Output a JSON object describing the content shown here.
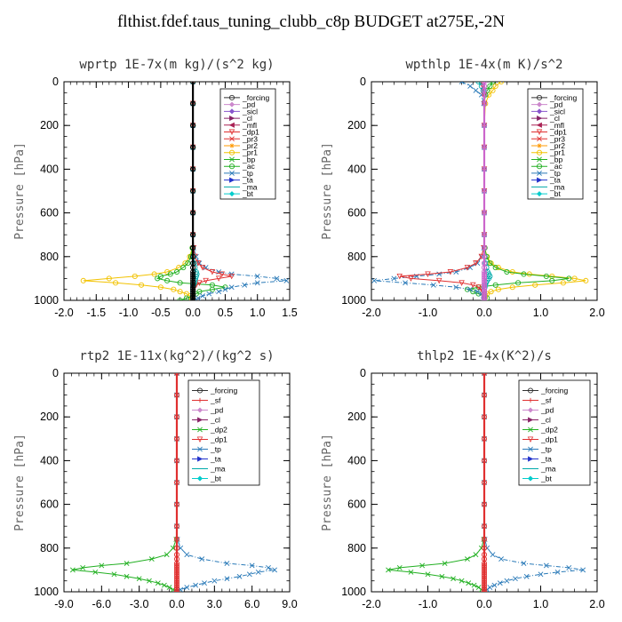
{
  "figure_title": "flthist.fdef.taus_tuning_clubb_c8p  BUDGET at275E,-2N",
  "chart_data": [
    {
      "type": "line",
      "panel": "wprtp",
      "title": "wprtp   1E-7x(m kg)/(s^2 kg)",
      "xlabel": "",
      "ylabel": "Pressure [hPa]",
      "xlim": [
        -2.0,
        1.5
      ],
      "ylim": [
        1000,
        0
      ],
      "xticks": [
        -2.0,
        -1.5,
        -1.0,
        -0.5,
        0.0,
        0.5,
        1.0,
        1.5
      ],
      "yticks": [
        0,
        200,
        400,
        600,
        800,
        1000
      ],
      "pressure": [
        0,
        100,
        200,
        300,
        400,
        500,
        600,
        700,
        760,
        800,
        830,
        850,
        870,
        880,
        890,
        900,
        910,
        920,
        930,
        940,
        950,
        960,
        970,
        980,
        990,
        1000
      ],
      "legend": [
        "_forcing",
        "_pd",
        "_sicl",
        "_cl",
        "_mfl",
        "_dp1",
        "_pr3",
        "_pr2",
        "_pr1",
        "_bp",
        "_ac",
        "_tp",
        "_ta",
        "_ma",
        "_bt"
      ],
      "series": [
        {
          "name": "_pr1",
          "color": "#f2c200",
          "values": [
            0,
            0,
            0,
            0,
            0,
            0,
            0,
            0,
            -0.01,
            -0.05,
            -0.12,
            -0.22,
            -0.4,
            -0.6,
            -0.9,
            -1.3,
            -1.7,
            -1.2,
            -0.8,
            -0.5,
            -0.3,
            -0.2,
            -0.1,
            -0.05,
            -0.02,
            0
          ]
        },
        {
          "name": "_ac",
          "color": "#22b022",
          "values": [
            0,
            0,
            0,
            0,
            0,
            0,
            0,
            0,
            -0.01,
            -0.03,
            -0.08,
            -0.15,
            -0.25,
            -0.35,
            -0.5,
            -0.55,
            -0.4,
            -0.2,
            0.3,
            0.5,
            0.3,
            0.1,
            0.05,
            0.0,
            -0.1,
            -0.2
          ]
        },
        {
          "name": "_tp",
          "color": "#2a7ab8",
          "values": [
            0,
            0,
            0,
            0,
            0,
            0,
            0,
            0,
            0.01,
            0.05,
            0.1,
            0.2,
            0.4,
            0.6,
            1.0,
            1.3,
            1.45,
            1.0,
            0.8,
            0.6,
            0.5,
            0.4,
            0.25,
            0.15,
            0.08,
            0
          ]
        },
        {
          "name": "_dp1",
          "color": "#e03030",
          "values": [
            0,
            0,
            0,
            0,
            0,
            0,
            0,
            0,
            0.01,
            0.03,
            0.08,
            0.15,
            0.3,
            0.45,
            0.6,
            0.4,
            0.2,
            0.1,
            0.05,
            0.02,
            0,
            0,
            0,
            0,
            0,
            0
          ]
        },
        {
          "name": "_ma",
          "color": "#00aaaa",
          "values": [
            0,
            0,
            0,
            0,
            0,
            0,
            0,
            0,
            0,
            0.01,
            0.02,
            0.03,
            0.05,
            0.06,
            0.05,
            0.04,
            0.03,
            0.02,
            0.01,
            0,
            0,
            0,
            0,
            0,
            0,
            0
          ]
        },
        {
          "name": "_forcing",
          "color": "#000000",
          "values": [
            0,
            0,
            0,
            0,
            0,
            0,
            0,
            0,
            0,
            0,
            0,
            0,
            0,
            0,
            0,
            0,
            0,
            0,
            0,
            0,
            0,
            0,
            0,
            0,
            0,
            0
          ]
        }
      ]
    },
    {
      "type": "line",
      "panel": "wpthlp",
      "title": "wpthlp   1E-4x(m K)/s^2",
      "xlabel": "",
      "ylabel": "Pressure [hPa]",
      "xlim": [
        -2.0,
        2.0
      ],
      "ylim": [
        1000,
        0
      ],
      "xticks": [
        -2.0,
        -1.0,
        0.0,
        1.0,
        2.0
      ],
      "yticks": [
        0,
        200,
        400,
        600,
        800,
        1000
      ],
      "pressure": [
        0,
        20,
        40,
        60,
        100,
        200,
        300,
        400,
        500,
        600,
        700,
        760,
        800,
        830,
        850,
        870,
        880,
        890,
        900,
        910,
        920,
        930,
        940,
        950,
        960,
        970,
        980,
        990,
        1000
      ],
      "legend": [
        "_forcing",
        "_pd",
        "_sicl",
        "_cl",
        "_mfl",
        "_dp1",
        "_pr3",
        "_pr2",
        "_pr1",
        "_bp",
        "_ac",
        "_tp",
        "_ta",
        "_ma",
        "_bt"
      ],
      "series": [
        {
          "name": "_pr1",
          "color": "#f2c200",
          "values": [
            0.3,
            0.2,
            0.15,
            0.08,
            0.02,
            0,
            0,
            0,
            0,
            0,
            0,
            0.01,
            0.05,
            0.12,
            0.25,
            0.5,
            0.8,
            1.2,
            1.6,
            1.8,
            1.4,
            0.9,
            0.5,
            0.25,
            0.12,
            0.05,
            0.02,
            0.01,
            0
          ]
        },
        {
          "name": "_ac",
          "color": "#22b022",
          "values": [
            0.15,
            0.1,
            0.05,
            0.02,
            0,
            0,
            0,
            0,
            0,
            0,
            0,
            0.01,
            0.04,
            0.1,
            0.2,
            0.4,
            0.7,
            1.1,
            1.5,
            1.2,
            0.6,
            0.2,
            -0.1,
            -0.3,
            -0.2,
            -0.1,
            0,
            0.05,
            0
          ]
        },
        {
          "name": "_tp",
          "color": "#2a7ab8",
          "values": [
            -0.4,
            -0.25,
            -0.15,
            -0.05,
            -0.01,
            0,
            0,
            0,
            0,
            0,
            0,
            -0.01,
            -0.05,
            -0.12,
            -0.25,
            -0.5,
            -0.8,
            -1.2,
            -1.6,
            -1.95,
            -1.4,
            -0.9,
            -0.5,
            -0.25,
            -0.12,
            -0.05,
            -0.02,
            -0.01,
            0
          ]
        },
        {
          "name": "_dp1",
          "color": "#e03030",
          "values": [
            -0.05,
            -0.03,
            -0.02,
            -0.01,
            0,
            0,
            0,
            0,
            0,
            0,
            0,
            -0.01,
            -0.05,
            -0.15,
            -0.3,
            -0.6,
            -1.0,
            -1.5,
            -1.3,
            -0.8,
            -0.4,
            -0.2,
            -0.1,
            -0.05,
            -0.02,
            0,
            0,
            0,
            0
          ]
        },
        {
          "name": "_ma",
          "color": "#00aaaa",
          "values": [
            -0.1,
            -0.05,
            -0.02,
            0,
            0,
            0,
            0,
            0,
            0,
            0,
            0,
            0,
            0.01,
            0.02,
            0.04,
            0.06,
            0.08,
            0.1,
            0.08,
            0.05,
            0.03,
            0.02,
            0.01,
            0,
            0,
            0,
            0,
            0,
            0
          ]
        },
        {
          "name": "_forcing",
          "color": "#cc66cc",
          "values": [
            0,
            0,
            0,
            0,
            0,
            0,
            0,
            0,
            0,
            0,
            0,
            0,
            0,
            0,
            0,
            0,
            0,
            0,
            0,
            0,
            0,
            0,
            0,
            0,
            0,
            0,
            0,
            0,
            0
          ]
        }
      ]
    },
    {
      "type": "line",
      "panel": "rtp2",
      "title": "rtp2   1E-11x(kg^2)/(kg^2 s)",
      "xlabel": "",
      "ylabel": "Pressure [hPa]",
      "xlim": [
        -9.0,
        9.0
      ],
      "ylim": [
        1000,
        0
      ],
      "xticks": [
        -9.0,
        -6.0,
        -3.0,
        0.0,
        3.0,
        6.0,
        9.0
      ],
      "yticks": [
        0,
        200,
        400,
        600,
        800,
        1000
      ],
      "pressure": [
        0,
        100,
        200,
        300,
        400,
        500,
        600,
        700,
        760,
        800,
        830,
        850,
        870,
        880,
        890,
        900,
        910,
        920,
        930,
        940,
        950,
        960,
        970,
        980,
        990,
        1000
      ],
      "legend": [
        "_forcing",
        "_sf",
        "_pd",
        "_cl",
        "_dp2",
        "_dp1",
        "_tp",
        "_ta",
        "_ma",
        "_bt"
      ],
      "series": [
        {
          "name": "_dp2",
          "color": "#22b022",
          "values": [
            0,
            0,
            0,
            0,
            0,
            0,
            0,
            0,
            -0.05,
            -0.3,
            -0.8,
            -2.0,
            -4.0,
            -6.0,
            -7.5,
            -8.3,
            -6.5,
            -5.0,
            -4.0,
            -3.0,
            -2.2,
            -1.5,
            -1.0,
            -0.6,
            -0.3,
            0
          ]
        },
        {
          "name": "_tp",
          "color": "#2a7ab8",
          "values": [
            0,
            0,
            0,
            0,
            0,
            0,
            0,
            0,
            0.05,
            0.3,
            0.8,
            2.0,
            4.0,
            6.0,
            7.3,
            7.8,
            6.5,
            5.8,
            5.0,
            4.0,
            3.0,
            2.2,
            1.5,
            0.8,
            0.3,
            0
          ]
        },
        {
          "name": "_forcing",
          "color": "#e03030",
          "values": [
            0,
            0,
            0,
            0,
            0,
            0,
            0,
            0,
            0,
            0,
            0,
            0,
            0,
            0,
            0,
            0,
            0,
            0,
            0,
            0,
            0,
            0,
            0,
            0,
            0,
            0
          ]
        }
      ]
    },
    {
      "type": "line",
      "panel": "thlp2",
      "title": "thlp2   1E-4x(K^2)/s",
      "xlabel": "",
      "ylabel": "Pressure [hPa]",
      "xlim": [
        -2.0,
        2.0
      ],
      "ylim": [
        1000,
        0
      ],
      "xticks": [
        -2.0,
        -1.0,
        0.0,
        1.0,
        2.0
      ],
      "yticks": [
        0,
        200,
        400,
        600,
        800,
        1000
      ],
      "pressure": [
        0,
        100,
        200,
        300,
        400,
        500,
        600,
        700,
        760,
        800,
        830,
        850,
        870,
        880,
        890,
        900,
        910,
        920,
        930,
        940,
        950,
        960,
        970,
        980,
        990,
        1000
      ],
      "legend": [
        "_forcing",
        "_sf",
        "_pd",
        "_cl",
        "_dp2",
        "_dp1",
        "_tp",
        "_ta",
        "_ma",
        "_bt"
      ],
      "series": [
        {
          "name": "_dp2",
          "color": "#22b022",
          "values": [
            0,
            0,
            0,
            0,
            0,
            0,
            0,
            0,
            -0.01,
            -0.05,
            -0.15,
            -0.3,
            -0.7,
            -1.1,
            -1.5,
            -1.7,
            -1.3,
            -1.0,
            -0.75,
            -0.55,
            -0.4,
            -0.28,
            -0.18,
            -0.1,
            -0.05,
            0
          ]
        },
        {
          "name": "_tp",
          "color": "#2a7ab8",
          "values": [
            0,
            0,
            0,
            0,
            0,
            0,
            0,
            0,
            0.01,
            0.05,
            0.15,
            0.3,
            0.7,
            1.1,
            1.5,
            1.75,
            1.3,
            1.0,
            0.75,
            0.55,
            0.4,
            0.28,
            0.18,
            0.1,
            0.05,
            0
          ]
        },
        {
          "name": "_forcing",
          "color": "#e03030",
          "values": [
            0,
            0,
            0,
            0,
            0,
            0,
            0,
            0,
            0,
            0,
            0,
            0,
            0,
            0,
            0,
            0,
            0,
            0,
            0,
            0,
            0,
            0,
            0,
            0,
            0,
            0
          ]
        }
      ]
    }
  ],
  "legend_styles": {
    "_forcing": {
      "color": "#333333",
      "marker": "o"
    },
    "_pd": {
      "color": "#cc88cc",
      "marker": "d"
    },
    "_sicl": {
      "color": "#8855cc",
      "marker": "d"
    },
    "_cl": {
      "color": "#882266",
      "marker": ">"
    },
    "_mfl": {
      "color": "#aa2255",
      "marker": "<"
    },
    "_dp1": {
      "color": "#e03030",
      "marker": "v"
    },
    "_pr3": {
      "color": "#e03030",
      "marker": "x"
    },
    "_pr2": {
      "color": "#ff9900",
      "marker": "*"
    },
    "_pr1": {
      "color": "#f2c200",
      "marker": "o"
    },
    "_bp": {
      "color": "#22b022",
      "marker": "x"
    },
    "_ac": {
      "color": "#22b022",
      "marker": "o"
    },
    "_tp": {
      "color": "#2a7ab8",
      "marker": "x"
    },
    "_ta": {
      "color": "#2233cc",
      "marker": ">"
    },
    "_ma": {
      "color": "#00aaaa",
      "marker": "-"
    },
    "_bt": {
      "color": "#00cccc",
      "marker": "d"
    },
    "_sf": {
      "color": "#e03030",
      "marker": "+"
    },
    "_dp2": {
      "color": "#22b022",
      "marker": "x"
    }
  }
}
